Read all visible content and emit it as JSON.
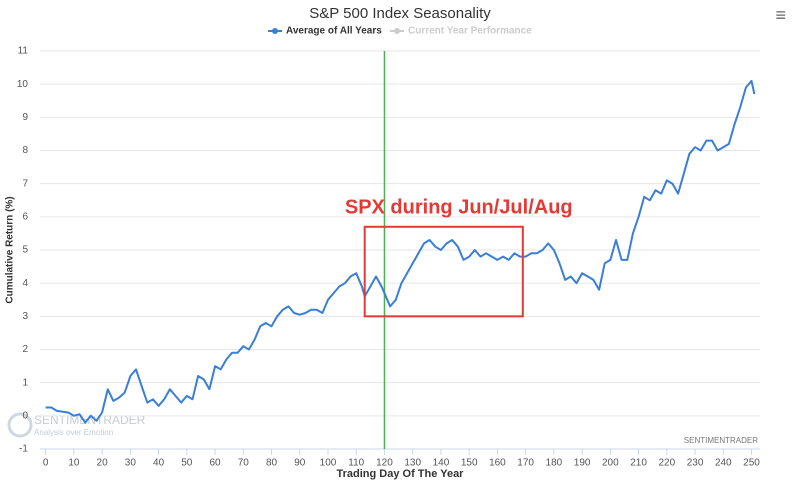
{
  "chart_data": {
    "type": "line",
    "title": "S&P 500 Index Seasonality",
    "x_label": "Trading Day Of The Year",
    "y_label": "Cumulative Return (%)",
    "xlim": [
      -2,
      253
    ],
    "ylim": [
      -1,
      11
    ],
    "xticks": [
      0,
      10,
      20,
      30,
      40,
      50,
      60,
      70,
      80,
      90,
      100,
      110,
      120,
      130,
      140,
      150,
      160,
      170,
      180,
      190,
      200,
      210,
      220,
      230,
      240,
      250
    ],
    "yticks": [
      -1,
      0,
      1,
      2,
      3,
      4,
      5,
      6,
      7,
      8,
      9,
      10,
      11
    ],
    "grid": true,
    "legend_position": "top",
    "legend_inactive": {
      "name": "Current Year Performance",
      "color": "#cccccc"
    },
    "vline": {
      "x": 120,
      "color": "#4caf50"
    },
    "annotation": {
      "text": "SPX during Jun/Jul/Aug",
      "color": "#e53935",
      "box_x": [
        113,
        169
      ],
      "box_y": [
        3.0,
        5.7
      ]
    },
    "watermark": "SENTIMENTRADER",
    "logo_text": "SENTIMENTRADER",
    "logo_subtext": "Analysis over Emotion",
    "menu_icon": "≡",
    "series": [
      {
        "name": "Average of All Years",
        "color": "#3a7fd5",
        "x": [
          0,
          2,
          4,
          8,
          10,
          12,
          14,
          16,
          18,
          20,
          22,
          24,
          26,
          28,
          30,
          32,
          34,
          36,
          38,
          40,
          42,
          44,
          46,
          48,
          50,
          52,
          54,
          56,
          58,
          60,
          62,
          64,
          66,
          68,
          70,
          72,
          74,
          76,
          78,
          80,
          82,
          84,
          86,
          88,
          90,
          92,
          94,
          96,
          98,
          100,
          102,
          104,
          106,
          108,
          110,
          112,
          113,
          115,
          117,
          119,
          121,
          122,
          124,
          126,
          128,
          130,
          132,
          134,
          136,
          138,
          140,
          142,
          144,
          146,
          148,
          150,
          152,
          154,
          156,
          158,
          160,
          162,
          164,
          166,
          168,
          170,
          172,
          174,
          176,
          178,
          180,
          182,
          184,
          186,
          188,
          190,
          192,
          194,
          196,
          198,
          200,
          202,
          204,
          206,
          208,
          210,
          212,
          214,
          216,
          218,
          220,
          222,
          224,
          226,
          228,
          230,
          232,
          234,
          236,
          238,
          240,
          242,
          244,
          246,
          248,
          250,
          251
        ],
        "values": [
          0.25,
          0.25,
          0.15,
          0.1,
          0.0,
          0.05,
          -0.2,
          0.0,
          -0.15,
          0.1,
          0.8,
          0.45,
          0.55,
          0.7,
          1.2,
          1.4,
          0.9,
          0.4,
          0.5,
          0.3,
          0.5,
          0.8,
          0.6,
          0.4,
          0.6,
          0.5,
          1.2,
          1.1,
          0.8,
          1.5,
          1.4,
          1.7,
          1.9,
          1.9,
          2.1,
          2.0,
          2.3,
          2.7,
          2.8,
          2.7,
          3.0,
          3.2,
          3.3,
          3.1,
          3.05,
          3.1,
          3.2,
          3.2,
          3.1,
          3.5,
          3.7,
          3.9,
          4.0,
          4.2,
          4.3,
          3.9,
          3.6,
          3.9,
          4.2,
          3.9,
          3.5,
          3.3,
          3.5,
          4.0,
          4.3,
          4.6,
          4.9,
          5.2,
          5.3,
          5.1,
          5.0,
          5.2,
          5.3,
          5.1,
          4.7,
          4.8,
          5.0,
          4.8,
          4.9,
          4.8,
          4.7,
          4.8,
          4.7,
          4.9,
          4.8,
          4.8,
          4.9,
          4.9,
          5.0,
          5.2,
          5.0,
          4.6,
          4.1,
          4.2,
          4.0,
          4.3,
          4.2,
          4.1,
          3.8,
          4.6,
          4.7,
          5.3,
          4.7,
          4.7,
          5.5,
          6.0,
          6.6,
          6.5,
          6.8,
          6.7,
          7.1,
          7.0,
          6.7,
          7.3,
          7.9,
          8.1,
          8.0,
          8.3,
          8.3,
          8.0,
          8.1,
          8.2,
          8.8,
          9.3,
          9.9,
          10.1,
          9.7
        ]
      }
    ]
  }
}
